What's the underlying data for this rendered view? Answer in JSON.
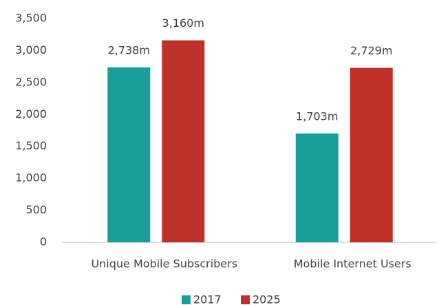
{
  "chart_data": {
    "type": "bar",
    "categories": [
      "Unique Mobile Subscribers",
      "Mobile Internet Users"
    ],
    "series": [
      {
        "name": "2017",
        "color": "#1a9e9a",
        "values": [
          2738,
          1703
        ],
        "value_labels": [
          "2,738m",
          "1,703m"
        ]
      },
      {
        "name": "2025",
        "color": "#c0302b",
        "values": [
          3160,
          2729
        ],
        "value_labels": [
          "3,160m",
          "2,729m"
        ]
      }
    ],
    "ylim": [
      0,
      3500
    ],
    "yticks": [
      0,
      500,
      {
        "value": 1000,
        "label": "1,000"
      },
      {
        "value": 1500,
        "label": "1,500"
      },
      {
        "value": 2000,
        "label": "2,000"
      },
      {
        "value": 2500,
        "label": "2,500"
      },
      {
        "value": 3000,
        "label": "3,000"
      },
      {
        "value": 3500,
        "label": "3,500"
      }
    ],
    "grid": false,
    "legend": "bottom"
  }
}
